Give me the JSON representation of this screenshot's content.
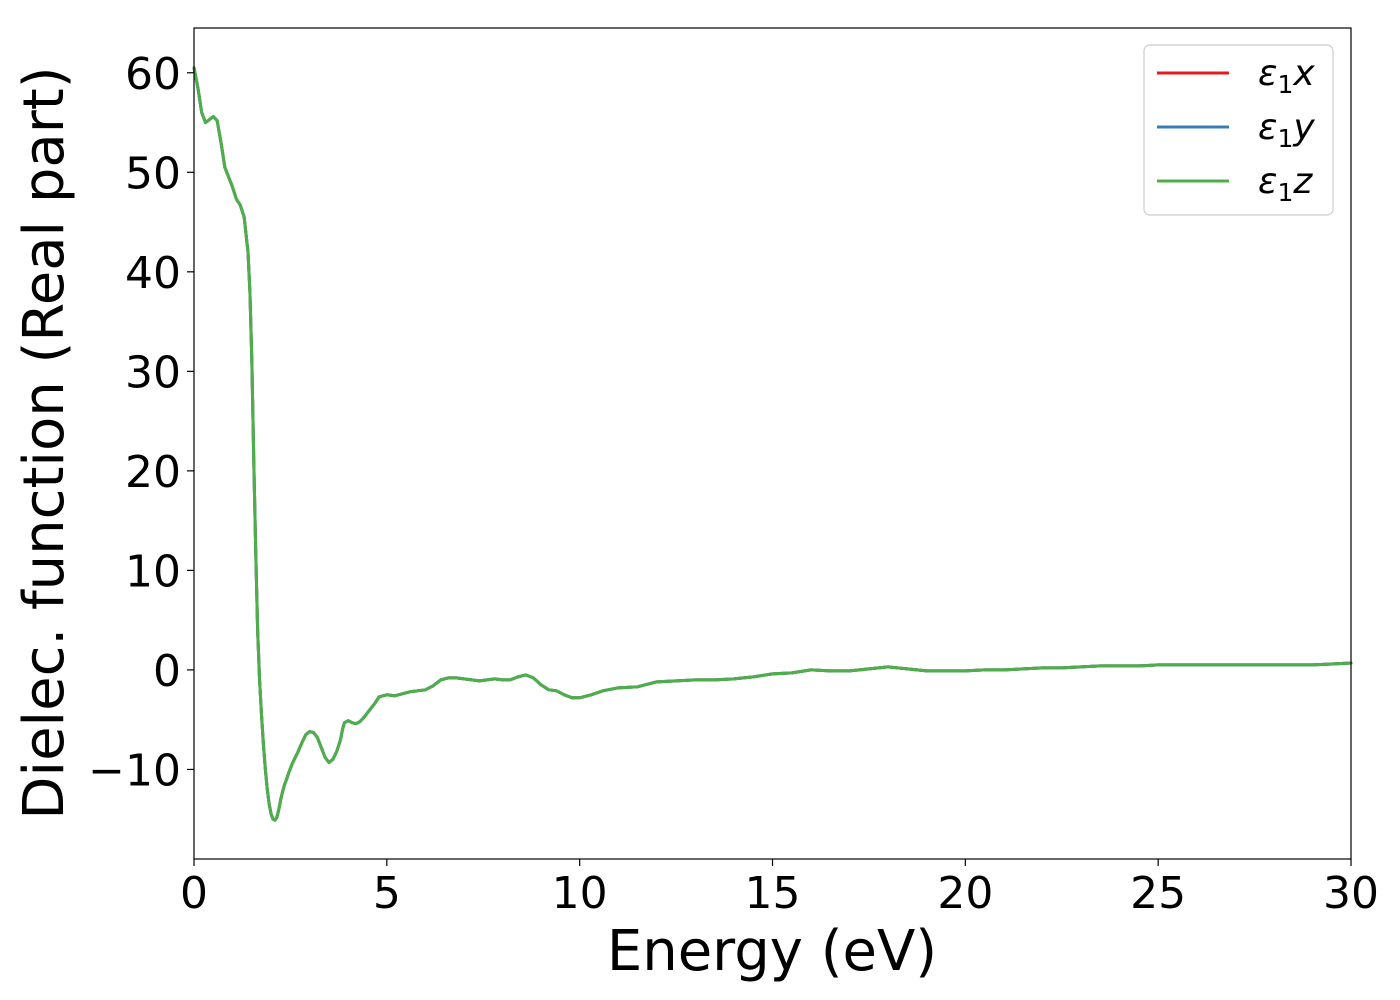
{
  "chart_data": {
    "type": "line",
    "title": "",
    "xlabel": "Energy (eV)",
    "ylabel": "Dielec. function (Real part)",
    "xlim": [
      0,
      30
    ],
    "ylim": [
      -19,
      64.5
    ],
    "xticks": [
      0,
      5,
      10,
      15,
      20,
      25,
      30
    ],
    "xtick_labels": [
      "0",
      "5",
      "10",
      "15",
      "20",
      "25",
      "30"
    ],
    "yticks": [
      60,
      50,
      40,
      30,
      20,
      10,
      0,
      -10
    ],
    "ytick_labels": [
      "60",
      "50",
      "40",
      "30",
      "20",
      "10",
      "0",
      "−10"
    ],
    "grid": false,
    "legend_position": "top-right",
    "series": [
      {
        "name": "ε1x",
        "label_base": "ε",
        "label_sub": "1",
        "label_var": "x",
        "color": "#e41a1c",
        "x": [
          0,
          0.1,
          0.2,
          0.3,
          0.4,
          0.5,
          0.6,
          0.7,
          0.8,
          0.9,
          1.0,
          1.1,
          1.2,
          1.3,
          1.4,
          1.45,
          1.5,
          1.55,
          1.6,
          1.65,
          1.7,
          1.75,
          1.8,
          1.85,
          1.9,
          1.95,
          2.0,
          2.05,
          2.1,
          2.15,
          2.2,
          2.25,
          2.3,
          2.35,
          2.4,
          2.45,
          2.5,
          2.55,
          2.6,
          2.7,
          2.8,
          2.9,
          3.0,
          3.1,
          3.2,
          3.3,
          3.4,
          3.5,
          3.6,
          3.7,
          3.8,
          3.85,
          3.9,
          4.0,
          4.1,
          4.2,
          4.3,
          4.4,
          4.5,
          4.6,
          4.7,
          4.8,
          5.0,
          5.2,
          5.4,
          5.6,
          5.8,
          6.0,
          6.2,
          6.4,
          6.6,
          6.8,
          7.0,
          7.2,
          7.4,
          7.6,
          7.8,
          8.0,
          8.2,
          8.4,
          8.6,
          8.8,
          9.0,
          9.2,
          9.4,
          9.6,
          9.8,
          10.0,
          10.3,
          10.6,
          11.0,
          11.5,
          12.0,
          12.5,
          13.0,
          13.5,
          14.0,
          14.5,
          15.0,
          15.5,
          16.0,
          16.5,
          17.0,
          17.5,
          18.0,
          18.5,
          19.0,
          19.5,
          20.0,
          20.5,
          21.0,
          21.5,
          22.0,
          22.5,
          23.0,
          23.5,
          24.0,
          24.5,
          25.0,
          25.5,
          26.0,
          26.5,
          27.0,
          27.5,
          28.0,
          28.5,
          29.0,
          29.5,
          30.0
        ],
        "y": [
          60.5,
          58.5,
          56.0,
          55.0,
          55.3,
          55.6,
          55.2,
          53.0,
          50.5,
          49.5,
          48.5,
          47.3,
          46.7,
          45.5,
          42.0,
          38.0,
          31.0,
          21.0,
          12.0,
          4.0,
          -1.0,
          -4.5,
          -7.5,
          -10.0,
          -12.0,
          -13.5,
          -14.5,
          -15.0,
          -15.1,
          -14.8,
          -14.0,
          -13.0,
          -12.2,
          -11.5,
          -11.0,
          -10.4,
          -9.9,
          -9.4,
          -9.0,
          -8.2,
          -7.3,
          -6.5,
          -6.2,
          -6.3,
          -6.8,
          -7.8,
          -8.8,
          -9.3,
          -9.0,
          -8.2,
          -7.0,
          -6.0,
          -5.3,
          -5.1,
          -5.3,
          -5.4,
          -5.2,
          -4.8,
          -4.3,
          -3.8,
          -3.3,
          -2.7,
          -2.5,
          -2.6,
          -2.4,
          -2.2,
          -2.1,
          -2.0,
          -1.6,
          -1.0,
          -0.8,
          -0.8,
          -0.9,
          -1.0,
          -1.1,
          -1.0,
          -0.9,
          -1.0,
          -1.0,
          -0.7,
          -0.5,
          -0.8,
          -1.5,
          -2.0,
          -2.1,
          -2.5,
          -2.8,
          -2.8,
          -2.5,
          -2.1,
          -1.8,
          -1.7,
          -1.2,
          -1.1,
          -1.0,
          -1.0,
          -0.9,
          -0.7,
          -0.4,
          -0.3,
          0.0,
          -0.1,
          -0.1,
          0.1,
          0.3,
          0.1,
          -0.1,
          -0.1,
          -0.1,
          0.0,
          0.0,
          0.1,
          0.2,
          0.2,
          0.3,
          0.4,
          0.4,
          0.4,
          0.5,
          0.5,
          0.5,
          0.5,
          0.5,
          0.5,
          0.5,
          0.5,
          0.5,
          0.6,
          0.7
        ]
      },
      {
        "name": "ε1y",
        "label_base": "ε",
        "label_sub": "1",
        "label_var": "y",
        "color": "#377eb8",
        "x": [
          0,
          0.1,
          0.2,
          0.3,
          0.4,
          0.5,
          0.6,
          0.7,
          0.8,
          0.9,
          1.0,
          1.1,
          1.2,
          1.3,
          1.4,
          1.45,
          1.5,
          1.55,
          1.6,
          1.65,
          1.7,
          1.75,
          1.8,
          1.85,
          1.9,
          1.95,
          2.0,
          2.05,
          2.1,
          2.15,
          2.2,
          2.25,
          2.3,
          2.35,
          2.4,
          2.45,
          2.5,
          2.55,
          2.6,
          2.7,
          2.8,
          2.9,
          3.0,
          3.1,
          3.2,
          3.3,
          3.4,
          3.5,
          3.6,
          3.7,
          3.8,
          3.85,
          3.9,
          4.0,
          4.1,
          4.2,
          4.3,
          4.4,
          4.5,
          4.6,
          4.7,
          4.8,
          5.0,
          5.2,
          5.4,
          5.6,
          5.8,
          6.0,
          6.2,
          6.4,
          6.6,
          6.8,
          7.0,
          7.2,
          7.4,
          7.6,
          7.8,
          8.0,
          8.2,
          8.4,
          8.6,
          8.8,
          9.0,
          9.2,
          9.4,
          9.6,
          9.8,
          10.0,
          10.3,
          10.6,
          11.0,
          11.5,
          12.0,
          12.5,
          13.0,
          13.5,
          14.0,
          14.5,
          15.0,
          15.5,
          16.0,
          16.5,
          17.0,
          17.5,
          18.0,
          18.5,
          19.0,
          19.5,
          20.0,
          20.5,
          21.0,
          21.5,
          22.0,
          22.5,
          23.0,
          23.5,
          24.0,
          24.5,
          25.0,
          25.5,
          26.0,
          26.5,
          27.0,
          27.5,
          28.0,
          28.5,
          29.0,
          29.5,
          30.0
        ],
        "y": [
          60.5,
          58.5,
          56.0,
          55.0,
          55.3,
          55.6,
          55.2,
          53.0,
          50.5,
          49.5,
          48.5,
          47.3,
          46.7,
          45.5,
          42.0,
          38.0,
          31.0,
          21.0,
          12.0,
          4.0,
          -1.0,
          -4.5,
          -7.5,
          -10.0,
          -12.0,
          -13.5,
          -14.5,
          -15.0,
          -15.1,
          -14.8,
          -14.0,
          -13.0,
          -12.2,
          -11.5,
          -11.0,
          -10.4,
          -9.9,
          -9.4,
          -9.0,
          -8.2,
          -7.3,
          -6.5,
          -6.2,
          -6.3,
          -6.8,
          -7.8,
          -8.8,
          -9.3,
          -9.0,
          -8.2,
          -7.0,
          -6.0,
          -5.3,
          -5.1,
          -5.3,
          -5.4,
          -5.2,
          -4.8,
          -4.3,
          -3.8,
          -3.3,
          -2.7,
          -2.5,
          -2.6,
          -2.4,
          -2.2,
          -2.1,
          -2.0,
          -1.6,
          -1.0,
          -0.8,
          -0.8,
          -0.9,
          -1.0,
          -1.1,
          -1.0,
          -0.9,
          -1.0,
          -1.0,
          -0.7,
          -0.5,
          -0.8,
          -1.5,
          -2.0,
          -2.1,
          -2.5,
          -2.8,
          -2.8,
          -2.5,
          -2.1,
          -1.8,
          -1.7,
          -1.2,
          -1.1,
          -1.0,
          -1.0,
          -0.9,
          -0.7,
          -0.4,
          -0.3,
          0.0,
          -0.1,
          -0.1,
          0.1,
          0.3,
          0.1,
          -0.1,
          -0.1,
          -0.1,
          0.0,
          0.0,
          0.1,
          0.2,
          0.2,
          0.3,
          0.4,
          0.4,
          0.4,
          0.5,
          0.5,
          0.5,
          0.5,
          0.5,
          0.5,
          0.5,
          0.5,
          0.5,
          0.6,
          0.7
        ]
      },
      {
        "name": "ε1z",
        "label_base": "ε",
        "label_sub": "1",
        "label_var": "z",
        "color": "#4daf4a",
        "x": [
          0,
          0.1,
          0.2,
          0.3,
          0.4,
          0.5,
          0.6,
          0.7,
          0.8,
          0.9,
          1.0,
          1.1,
          1.2,
          1.3,
          1.4,
          1.45,
          1.5,
          1.55,
          1.6,
          1.65,
          1.7,
          1.75,
          1.8,
          1.85,
          1.9,
          1.95,
          2.0,
          2.05,
          2.1,
          2.15,
          2.2,
          2.25,
          2.3,
          2.35,
          2.4,
          2.45,
          2.5,
          2.55,
          2.6,
          2.7,
          2.8,
          2.9,
          3.0,
          3.1,
          3.2,
          3.3,
          3.4,
          3.5,
          3.6,
          3.7,
          3.8,
          3.85,
          3.9,
          4.0,
          4.1,
          4.2,
          4.3,
          4.4,
          4.5,
          4.6,
          4.7,
          4.8,
          5.0,
          5.2,
          5.4,
          5.6,
          5.8,
          6.0,
          6.2,
          6.4,
          6.6,
          6.8,
          7.0,
          7.2,
          7.4,
          7.6,
          7.8,
          8.0,
          8.2,
          8.4,
          8.6,
          8.8,
          9.0,
          9.2,
          9.4,
          9.6,
          9.8,
          10.0,
          10.3,
          10.6,
          11.0,
          11.5,
          12.0,
          12.5,
          13.0,
          13.5,
          14.0,
          14.5,
          15.0,
          15.5,
          16.0,
          16.5,
          17.0,
          17.5,
          18.0,
          18.5,
          19.0,
          19.5,
          20.0,
          20.5,
          21.0,
          21.5,
          22.0,
          22.5,
          23.0,
          23.5,
          24.0,
          24.5,
          25.0,
          25.5,
          26.0,
          26.5,
          27.0,
          27.5,
          28.0,
          28.5,
          29.0,
          29.5,
          30.0
        ],
        "y": [
          60.5,
          58.5,
          56.0,
          55.0,
          55.3,
          55.6,
          55.2,
          53.0,
          50.5,
          49.5,
          48.5,
          47.3,
          46.7,
          45.5,
          42.0,
          38.0,
          31.0,
          21.0,
          12.0,
          4.0,
          -1.0,
          -4.5,
          -7.5,
          -10.0,
          -12.0,
          -13.5,
          -14.5,
          -15.0,
          -15.1,
          -14.8,
          -14.0,
          -13.0,
          -12.2,
          -11.5,
          -11.0,
          -10.4,
          -9.9,
          -9.4,
          -9.0,
          -8.2,
          -7.3,
          -6.5,
          -6.2,
          -6.3,
          -6.8,
          -7.8,
          -8.8,
          -9.3,
          -9.0,
          -8.2,
          -7.0,
          -6.0,
          -5.3,
          -5.1,
          -5.3,
          -5.4,
          -5.2,
          -4.8,
          -4.3,
          -3.8,
          -3.3,
          -2.7,
          -2.5,
          -2.6,
          -2.4,
          -2.2,
          -2.1,
          -2.0,
          -1.6,
          -1.0,
          -0.8,
          -0.8,
          -0.9,
          -1.0,
          -1.1,
          -1.0,
          -0.9,
          -1.0,
          -1.0,
          -0.7,
          -0.5,
          -0.8,
          -1.5,
          -2.0,
          -2.1,
          -2.5,
          -2.8,
          -2.8,
          -2.5,
          -2.1,
          -1.8,
          -1.7,
          -1.2,
          -1.1,
          -1.0,
          -1.0,
          -0.9,
          -0.7,
          -0.4,
          -0.3,
          0.0,
          -0.1,
          -0.1,
          0.1,
          0.3,
          0.1,
          -0.1,
          -0.1,
          -0.1,
          0.0,
          0.0,
          0.1,
          0.2,
          0.2,
          0.3,
          0.4,
          0.4,
          0.4,
          0.5,
          0.5,
          0.5,
          0.5,
          0.5,
          0.5,
          0.5,
          0.5,
          0.5,
          0.6,
          0.7
        ]
      }
    ]
  }
}
